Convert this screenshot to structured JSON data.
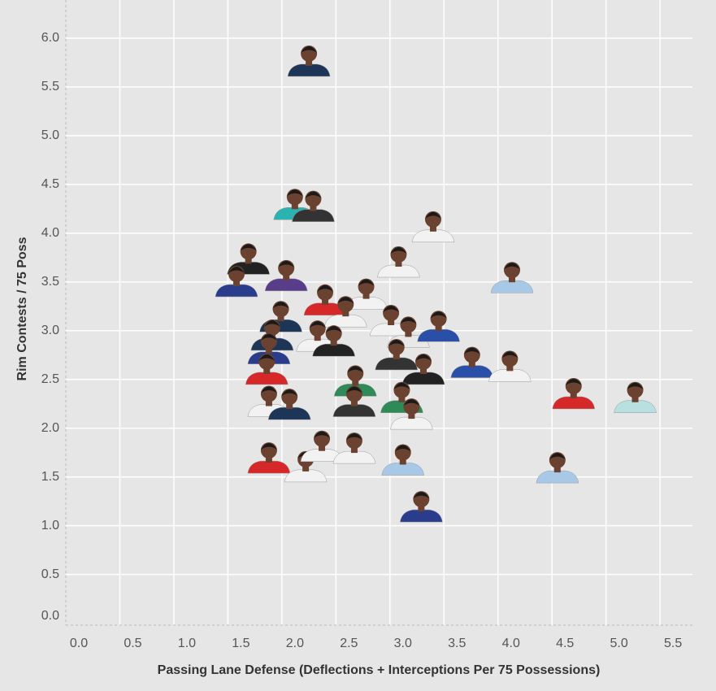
{
  "chart_data": {
    "type": "scatter",
    "x_label": "Passing Lane Defense (Deflections + Interceptions Per 75 Possessions)",
    "y_label": "Rim Contests / 75 Poss",
    "xlim": [
      0,
      5.8
    ],
    "ylim": [
      -0.02,
      6.4
    ],
    "xticks": [
      {
        "value": 0,
        "label": "0.0"
      },
      0.5,
      {
        "value": 1,
        "label": "1.0"
      },
      1.5,
      {
        "value": 2,
        "label": "2.0"
      },
      2.5,
      {
        "value": 3,
        "label": "3.0"
      },
      3.5,
      {
        "value": 4,
        "label": "4.0"
      },
      4.5,
      {
        "value": 5,
        "label": "5.0"
      },
      5.5
    ],
    "yticks": [
      {
        "value": 0,
        "label": "0.0"
      },
      0.5,
      {
        "value": 1,
        "label": "1.0"
      },
      1.5,
      {
        "value": 2,
        "label": "2.0"
      },
      2.5,
      {
        "value": 3,
        "label": "3.0"
      },
      3.5,
      {
        "value": 4,
        "label": "4.0"
      },
      4.5,
      {
        "value": 5,
        "label": "5.0"
      },
      5.5,
      {
        "value": 6,
        "label": "6.0"
      }
    ],
    "grid": true,
    "x": [
      2.25,
      2.12,
      2.29,
      3.4,
      1.69,
      1.58,
      2.04,
      3.08,
      4.13,
      2.4,
      2.78,
      2.59,
      1.99,
      3.01,
      3.17,
      3.45,
      1.91,
      2.33,
      2.48,
      1.88,
      3.06,
      3.31,
      3.76,
      4.11,
      1.86,
      4.7,
      5.27,
      2.68,
      1.88,
      2.07,
      2.67,
      3.11,
      3.2,
      1.88,
      2.22,
      2.37,
      2.67,
      3.12,
      4.55,
      3.29
    ],
    "y": [
      5.8,
      4.33,
      4.31,
      4.1,
      3.77,
      3.54,
      3.6,
      3.74,
      3.58,
      3.35,
      3.41,
      3.23,
      3.18,
      3.14,
      3.02,
      3.08,
      2.99,
      2.98,
      2.93,
      2.85,
      2.79,
      2.64,
      2.71,
      2.67,
      2.64,
      2.39,
      2.35,
      2.52,
      2.31,
      2.28,
      2.31,
      2.35,
      2.18,
      1.73,
      1.64,
      1.85,
      1.83,
      1.71,
      1.63,
      1.23
    ],
    "colors": [
      "#1d3557",
      "#2bb3b1",
      "#333333",
      "#f2f2f2",
      "#222222",
      "#2a3c8c",
      "#5a3d8a",
      "#f2f2f2",
      "#a8c8e8",
      "#d62828",
      "#f2f2f2",
      "#f2f2f2",
      "#1d3557",
      "#f2f2f2",
      "#e8e8e8",
      "#2a4fa8",
      "#1d3557",
      "#f2f2f2",
      "#222222",
      "#2a3c8c",
      "#333333",
      "#222222",
      "#2a4fa8",
      "#f2f2f2",
      "#d62828",
      "#d62828",
      "#b8e0e0",
      "#2e8b57",
      "#f2f2f2",
      "#1d3557",
      "#333333",
      "#2e8b57",
      "#f2f2f2",
      "#d62828",
      "#f2f2f2",
      "#f2f2f2",
      "#f2f2f2",
      "#a8c8e8",
      "#a8c8e8",
      "#2a3c8c"
    ],
    "skin_color": "#6b4230"
  }
}
